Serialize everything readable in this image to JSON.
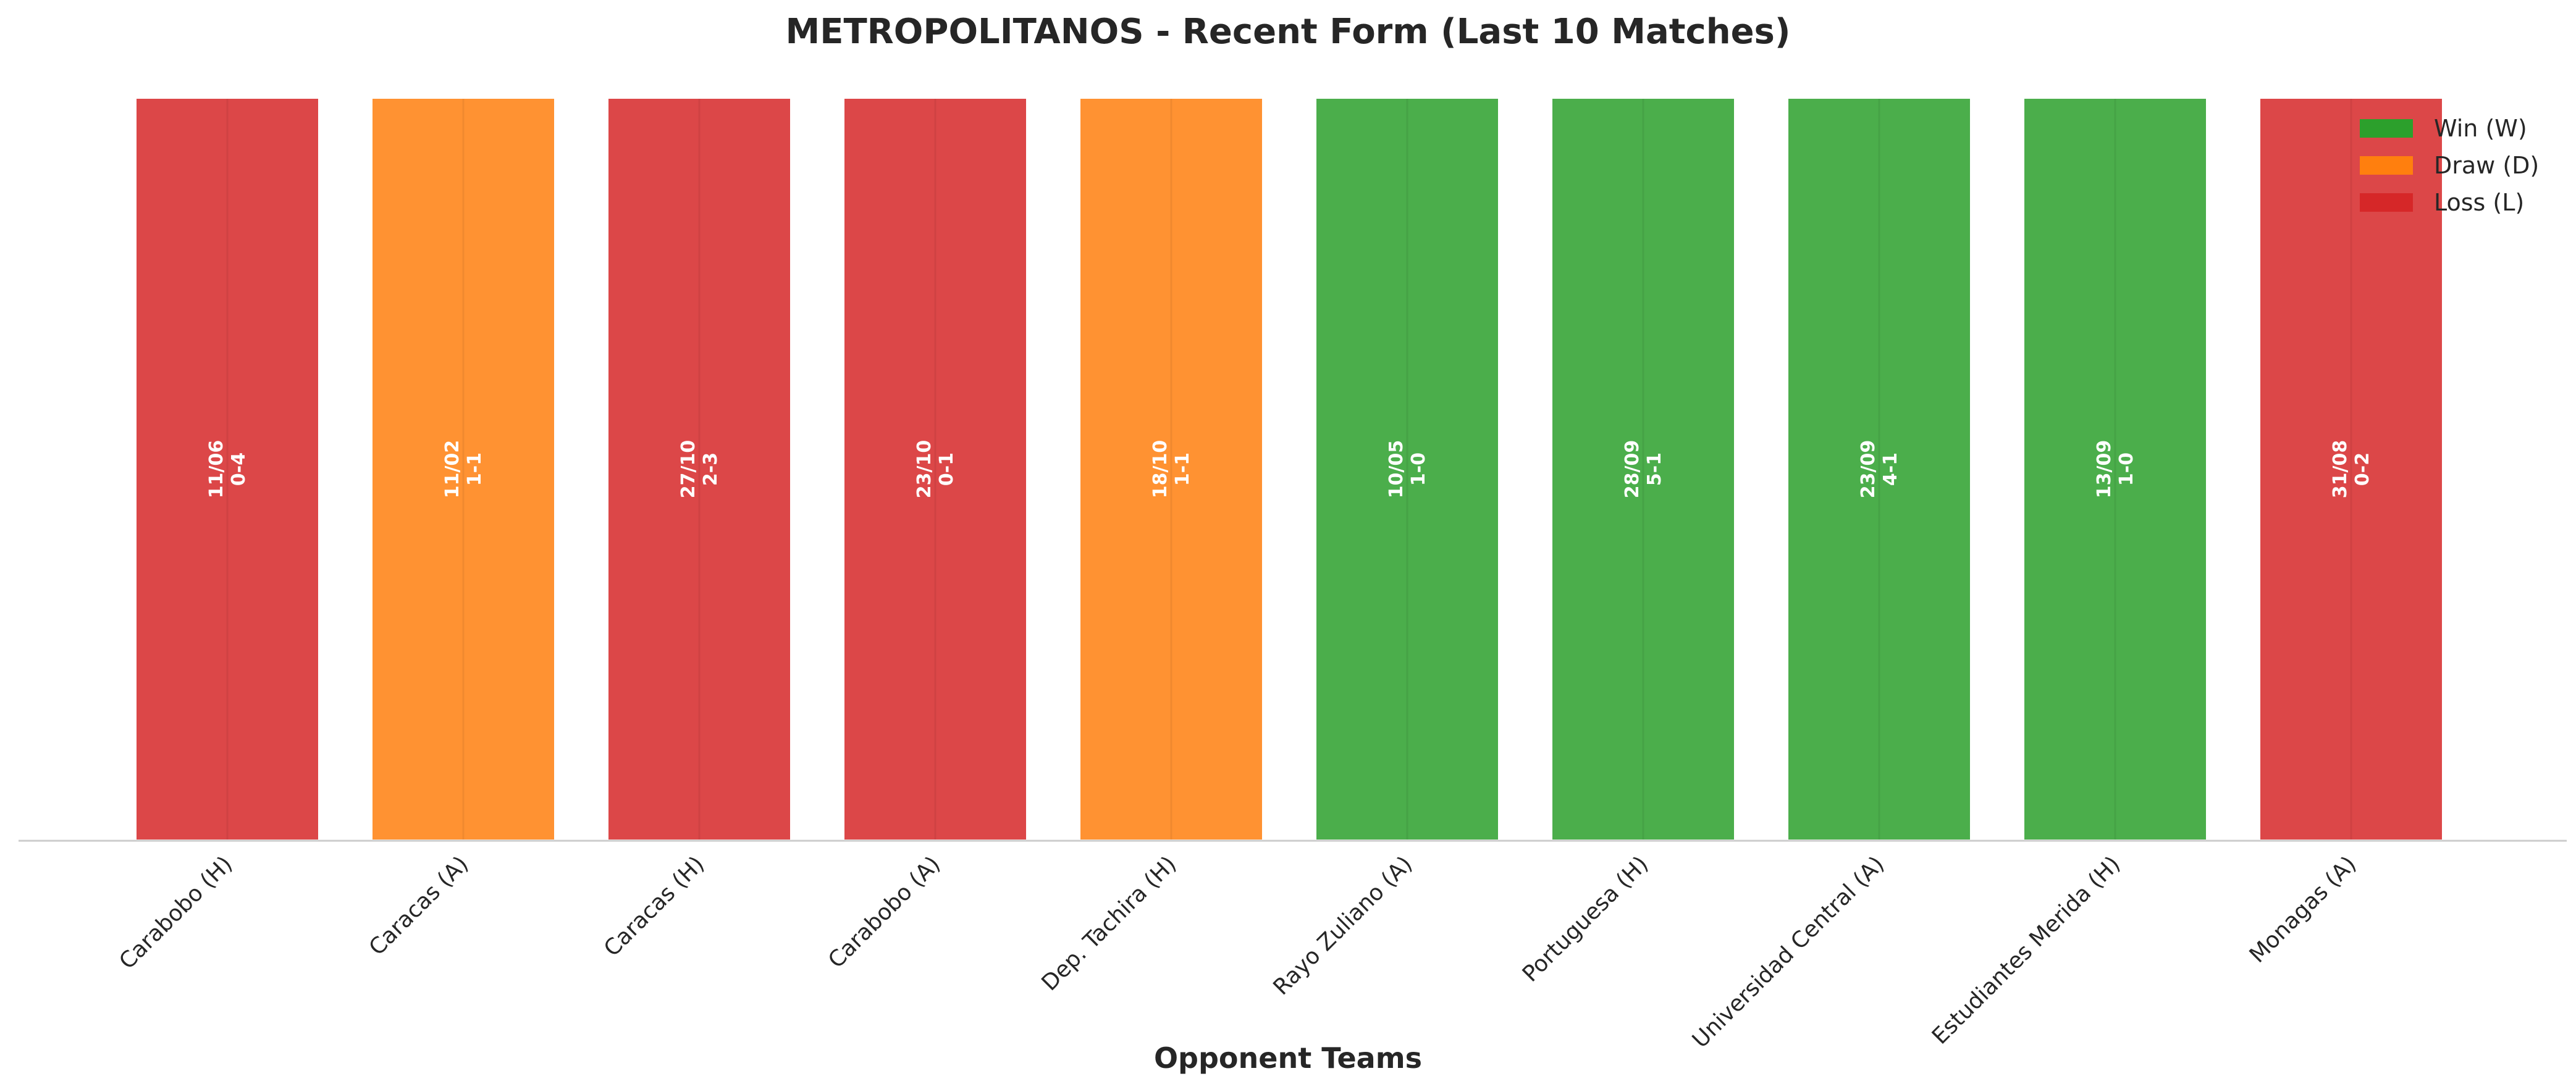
{
  "colors": {
    "win": "#2ca02c",
    "draw": "#ff7f0e",
    "loss": "#d62728"
  },
  "chart_data": {
    "type": "bar",
    "title": "METROPOLITANOS - Recent Form (Last 10 Matches)",
    "xlabel": "Opponent Teams",
    "ylabel": "",
    "grid": false,
    "legend_position": "top-right",
    "legend": [
      {
        "result": "W",
        "label": "Win (W)"
      },
      {
        "result": "D",
        "label": "Draw (D)"
      },
      {
        "result": "L",
        "label": "Loss (L)"
      }
    ],
    "categories": [
      "Carabobo (H)",
      "Caracas (A)",
      "Caracas (H)",
      "Carabobo (A)",
      "Dep. Tachira (H)",
      "Rayo Zuliano (A)",
      "Portuguesa (H)",
      "Universidad Central (A)",
      "Estudiantes Merida (H)",
      "Monagas (A)"
    ],
    "values": [
      1,
      1,
      1,
      1,
      1,
      1,
      1,
      1,
      1,
      1
    ],
    "results": [
      "L",
      "D",
      "L",
      "L",
      "D",
      "W",
      "W",
      "W",
      "W",
      "L"
    ],
    "dates": [
      "11/06",
      "11/02",
      "27/10",
      "23/10",
      "18/10",
      "10/05",
      "28/09",
      "23/09",
      "13/09",
      "31/08"
    ],
    "scores": [
      "0-4",
      "1-1",
      "2-3",
      "0-1",
      "1-1",
      "1-0",
      "5-1",
      "4-1",
      "1-0",
      "0-2"
    ]
  }
}
